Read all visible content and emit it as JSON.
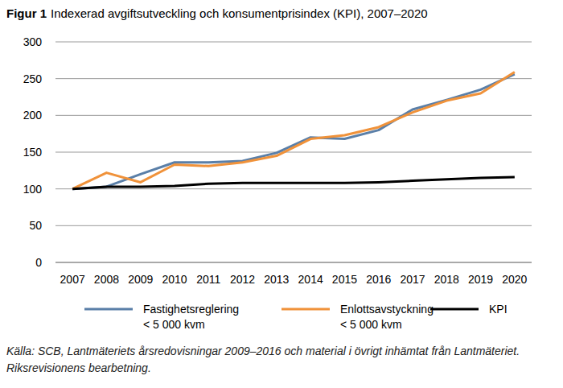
{
  "chart_data": {
    "type": "line",
    "figure_label": "Figur 1",
    "title": "Indexerad avgiftsutveckling och konsumentprisindex (KPI), 2007–2020",
    "source": "Källa: SCB, Lantmäteriets årsredovisningar 2009–2016 och material i övrigt inhämtat från Lantmäteriet. Riksrevisionens bearbetning.",
    "categories": [
      "2007",
      "2008",
      "2009",
      "2010",
      "2011",
      "2012",
      "2013",
      "2014",
      "2015",
      "2016",
      "2017",
      "2018",
      "2019",
      "2020"
    ],
    "series": [
      {
        "name": "Fastighetsreglering < 5 000 kvm",
        "color": "#5a7fa8",
        "values": [
          100,
          103,
          120,
          136,
          136,
          138,
          149,
          170,
          168,
          180,
          208,
          221,
          235,
          256
        ]
      },
      {
        "name": "Enlottsavstyckning < 5 000 kvm",
        "color": "#f0923a",
        "values": [
          100,
          122,
          109,
          133,
          131,
          136,
          145,
          168,
          173,
          184,
          204,
          220,
          230,
          259
        ]
      },
      {
        "name": "KPI",
        "color": "#000000",
        "values": [
          100,
          103,
          103,
          104,
          107,
          108,
          108,
          108,
          108,
          109,
          111,
          113,
          115,
          116
        ]
      }
    ],
    "ylim": [
      0,
      300
    ],
    "yticks": [
      0,
      50,
      100,
      150,
      200,
      250,
      300
    ],
    "grid": true,
    "legend": "bottom"
  }
}
